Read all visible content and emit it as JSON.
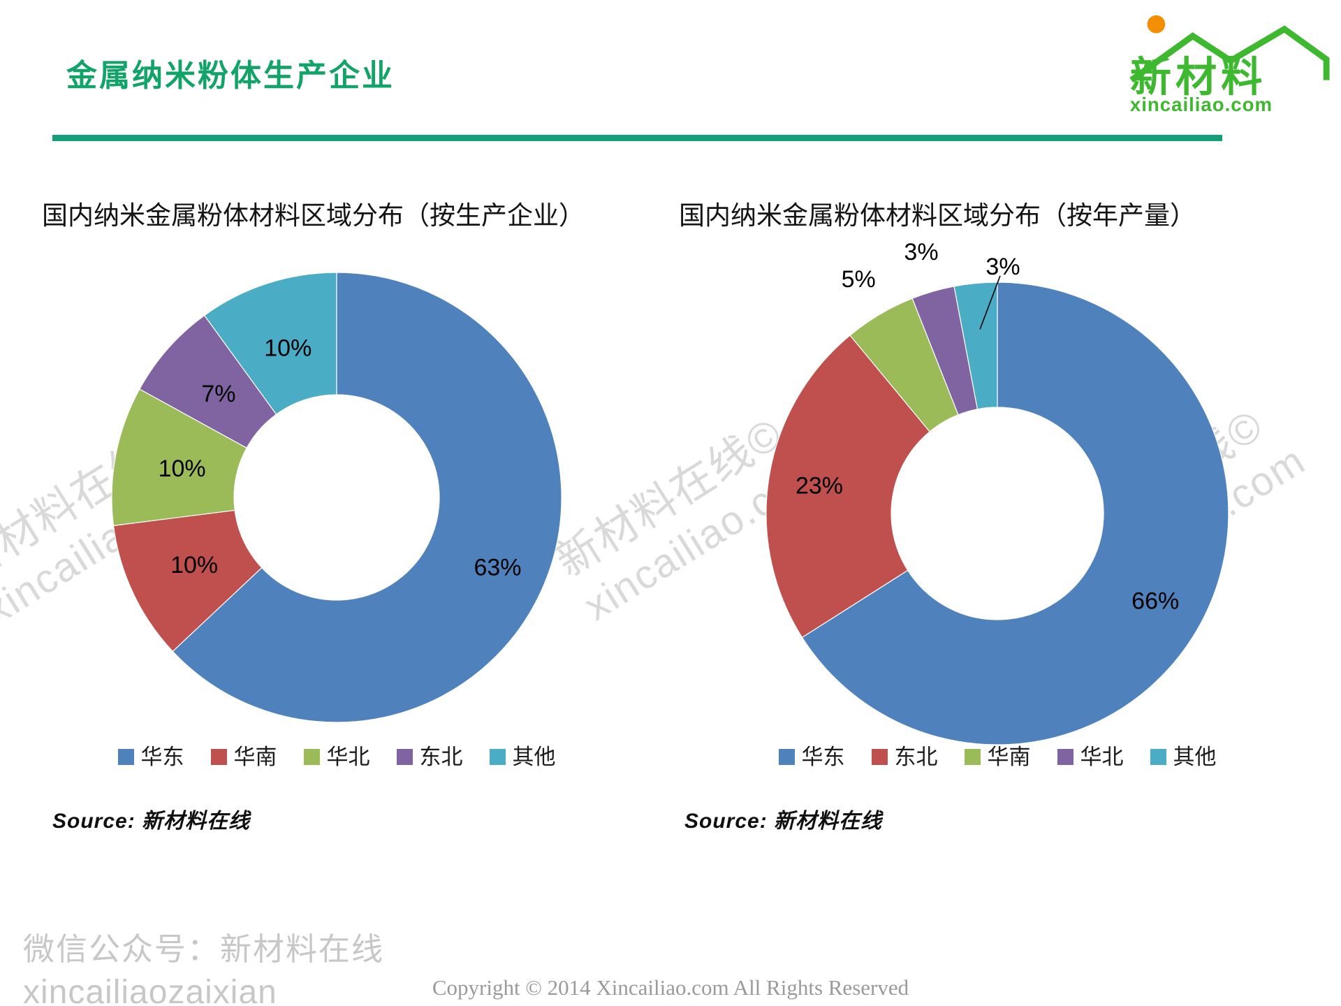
{
  "header": {
    "title": "金属纳米粉体生产企业"
  },
  "logo": {
    "name_cn": "新材料",
    "domain": "xincailiao.com",
    "green": "#3DB82F",
    "orange": "#F28E00"
  },
  "accent": {
    "title_green": "#12A368",
    "rule_green": "#11A077"
  },
  "watermark": {
    "line1": "新材料在线©",
    "line2": "xincailiao.com"
  },
  "chart_data": [
    {
      "type": "pie",
      "subtype": "donut",
      "title": "国内纳米金属粉体材料区域分布（按生产企业）",
      "categories": [
        "华东",
        "华南",
        "华北",
        "东北",
        "其他"
      ],
      "values": [
        63,
        10,
        10,
        7,
        10
      ],
      "labels": [
        "63%",
        "10%",
        "10%",
        "7%",
        "10%"
      ],
      "colors": [
        "#4F81BD",
        "#C0504D",
        "#9BBB59",
        "#8064A2",
        "#4BACC6"
      ],
      "label_placement": [
        "inside",
        "inside",
        "inside",
        "inside",
        "inside"
      ],
      "legend_position": "bottom",
      "source_prefix": "Source:",
      "source_text": "新材料在线"
    },
    {
      "type": "pie",
      "subtype": "donut",
      "title": "国内纳米金属粉体材料区域分布（按年产量）",
      "categories": [
        "华东",
        "东北",
        "华南",
        "华北",
        "其他"
      ],
      "values": [
        66,
        23,
        5,
        3,
        3
      ],
      "labels": [
        "66%",
        "23%",
        "5%",
        "3%",
        "3%"
      ],
      "colors": [
        "#4F81BD",
        "#C0504D",
        "#9BBB59",
        "#8064A2",
        "#4BACC6"
      ],
      "label_placement": [
        "inside",
        "inside",
        "outside",
        "outside",
        "leader"
      ],
      "legend_position": "bottom",
      "source_prefix": "Source:",
      "source_text": "新材料在线"
    }
  ],
  "footer": {
    "wechat_line1": "微信公众号：新材料在线",
    "wechat_line2": "xincailiaozaixian",
    "copyright": "Copyright © 2014  Xincailiao.com  All Rights Reserved"
  }
}
